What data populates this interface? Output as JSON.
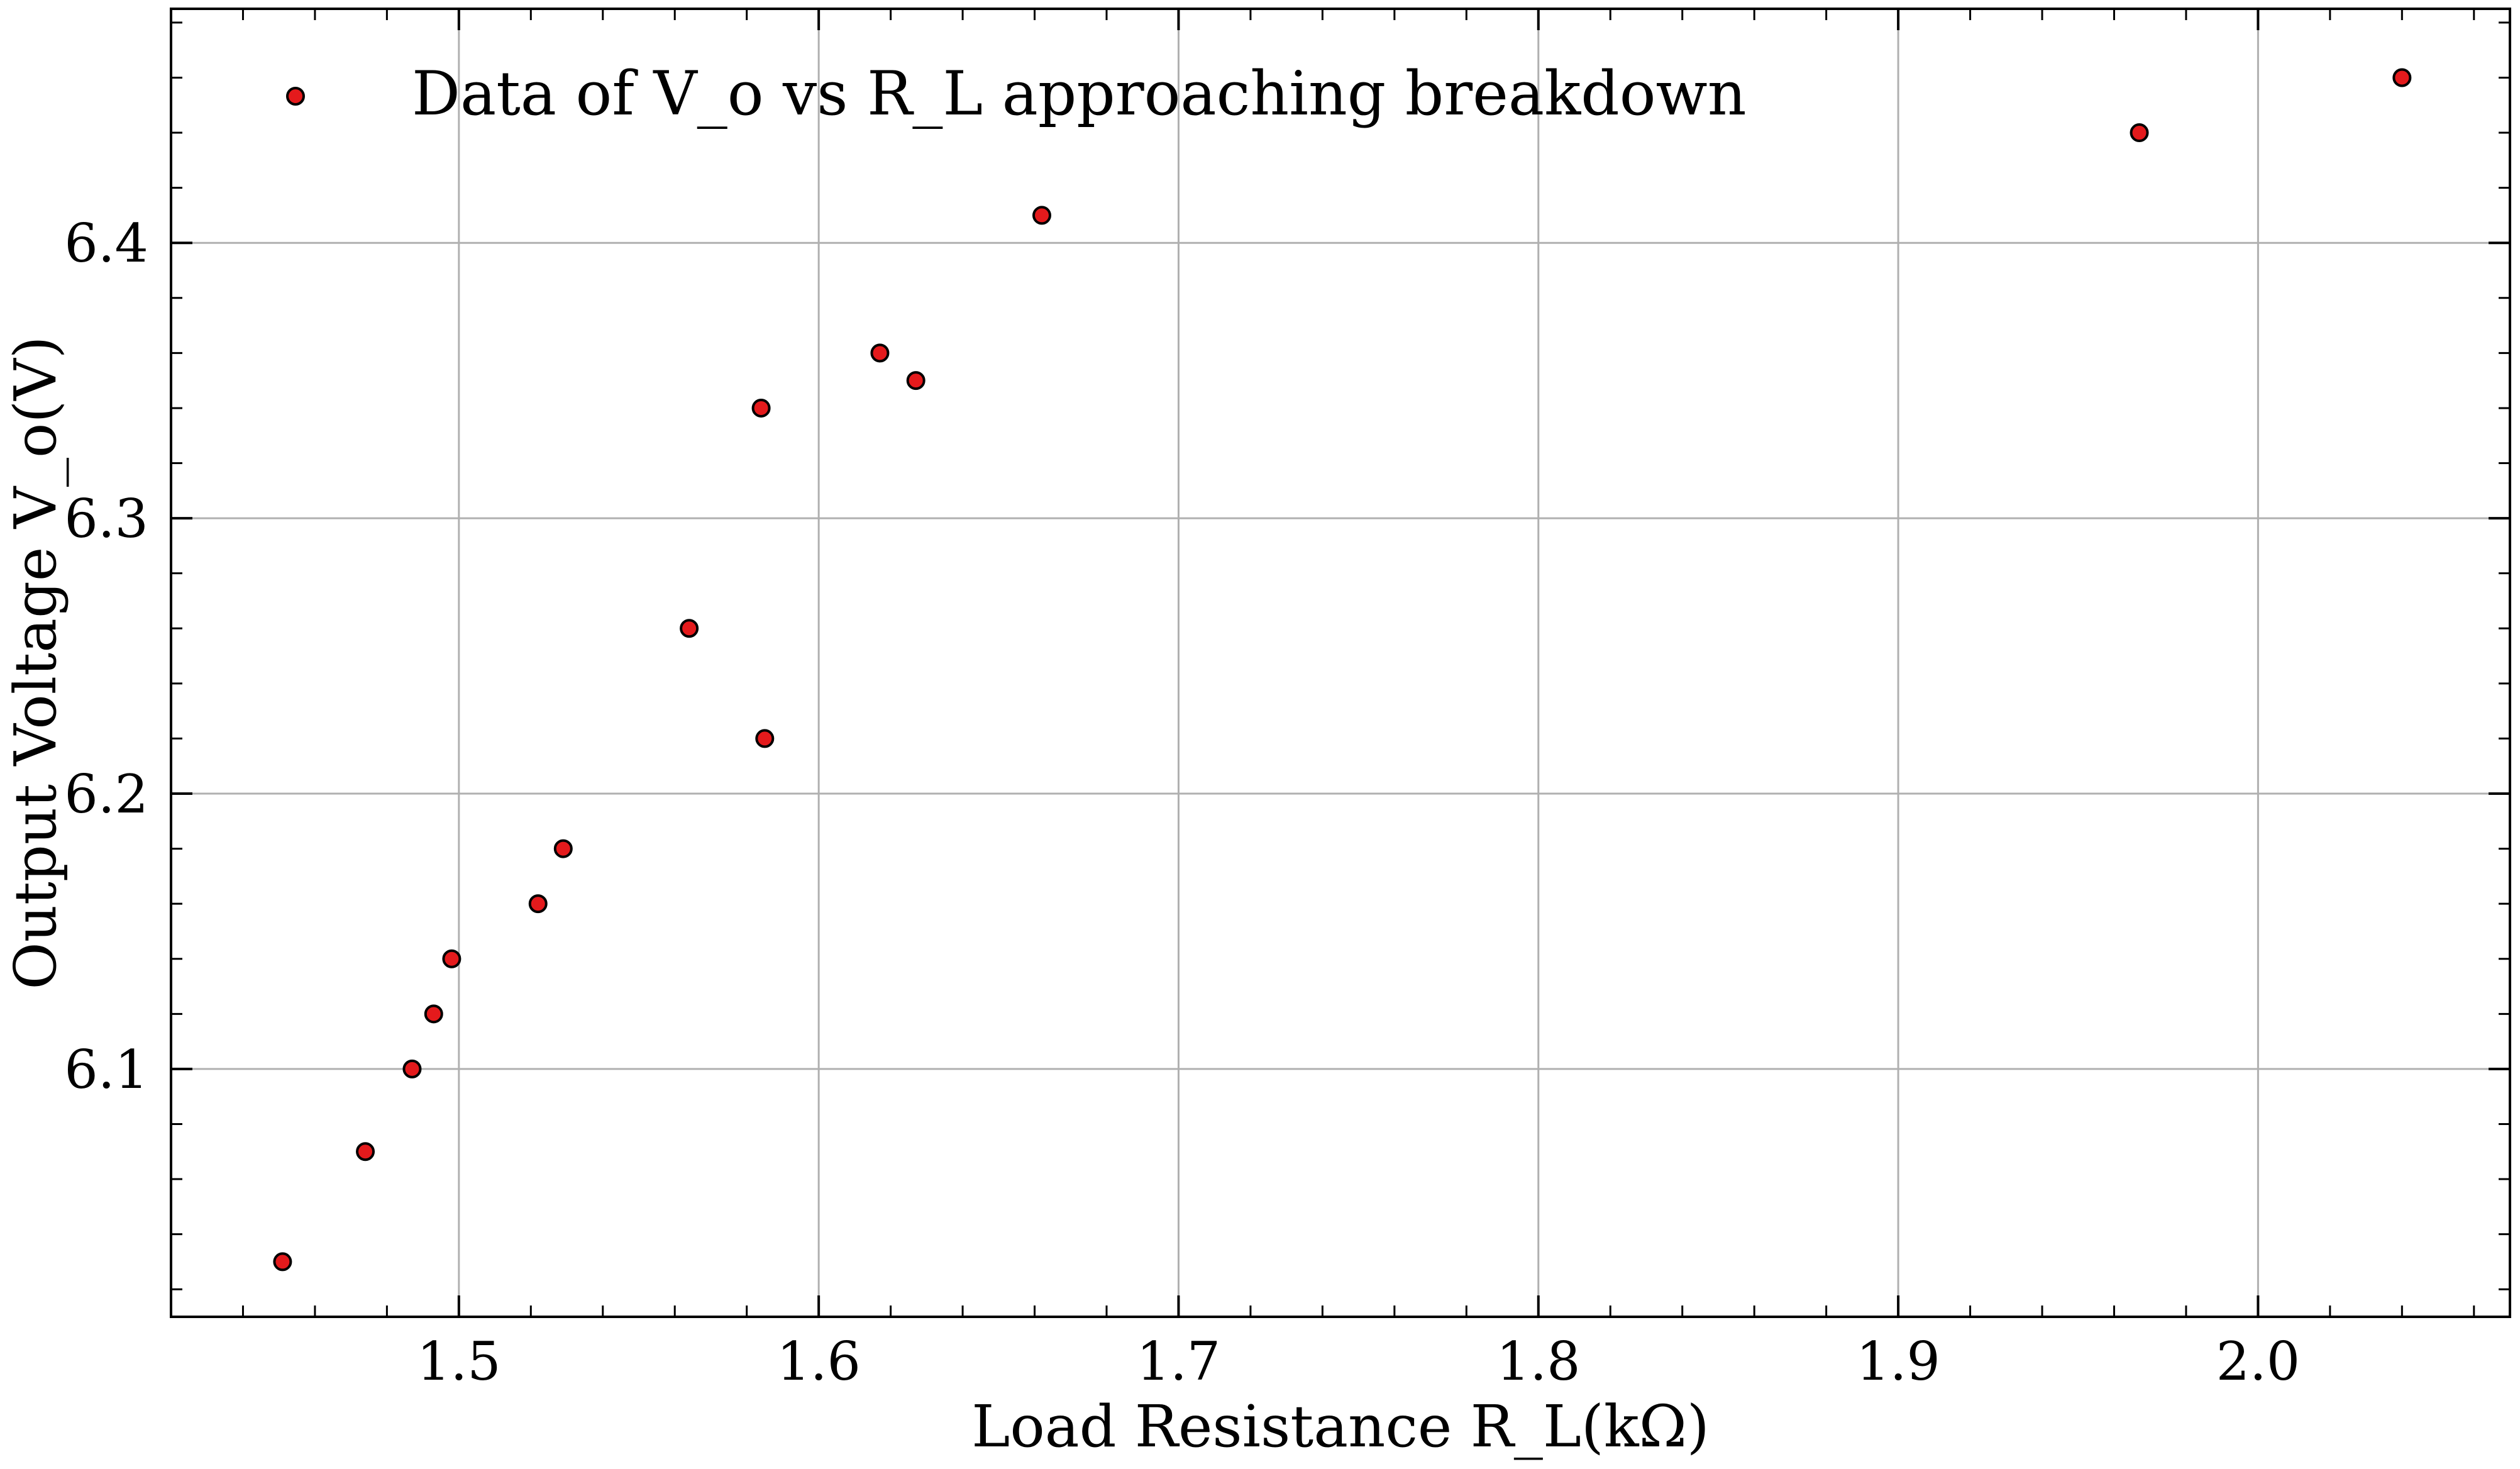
{
  "chart_data": {
    "type": "scatter",
    "title": "",
    "xlabel": "Load Resistance R_L(kΩ)",
    "ylabel": "Output Voltage V_o(V)",
    "xlim": [
      1.42,
      2.07
    ],
    "ylim": [
      6.01,
      6.485
    ],
    "grid": true,
    "legend_position": "top-left",
    "x_ticks": [
      {
        "value": 1.5,
        "label": "1.5"
      },
      {
        "value": 1.6,
        "label": "1.6"
      },
      {
        "value": 1.7,
        "label": "1.7"
      },
      {
        "value": 1.8,
        "label": "1.8"
      },
      {
        "value": 1.9,
        "label": "1.9"
      },
      {
        "value": 2.0,
        "label": "2.0"
      }
    ],
    "y_ticks": [
      {
        "value": 6.1,
        "label": "6.1"
      },
      {
        "value": 6.2,
        "label": "6.2"
      },
      {
        "value": 6.3,
        "label": "6.3"
      },
      {
        "value": 6.4,
        "label": "6.4"
      }
    ],
    "series": [
      {
        "name": "Data of V_o vs R_L approaching breakdown",
        "color": "#e41a1c",
        "edge_color": "#000000",
        "points": [
          {
            "x": 1.451,
            "y": 6.03
          },
          {
            "x": 1.474,
            "y": 6.07
          },
          {
            "x": 1.487,
            "y": 6.1
          },
          {
            "x": 1.493,
            "y": 6.12
          },
          {
            "x": 1.498,
            "y": 6.14
          },
          {
            "x": 1.522,
            "y": 6.16
          },
          {
            "x": 1.529,
            "y": 6.18
          },
          {
            "x": 1.564,
            "y": 6.26
          },
          {
            "x": 1.584,
            "y": 6.34
          },
          {
            "x": 1.585,
            "y": 6.22
          },
          {
            "x": 1.617,
            "y": 6.36
          },
          {
            "x": 1.627,
            "y": 6.35
          },
          {
            "x": 1.662,
            "y": 6.41
          },
          {
            "x": 1.967,
            "y": 6.44
          },
          {
            "x": 2.04,
            "y": 6.46
          }
        ]
      }
    ]
  }
}
